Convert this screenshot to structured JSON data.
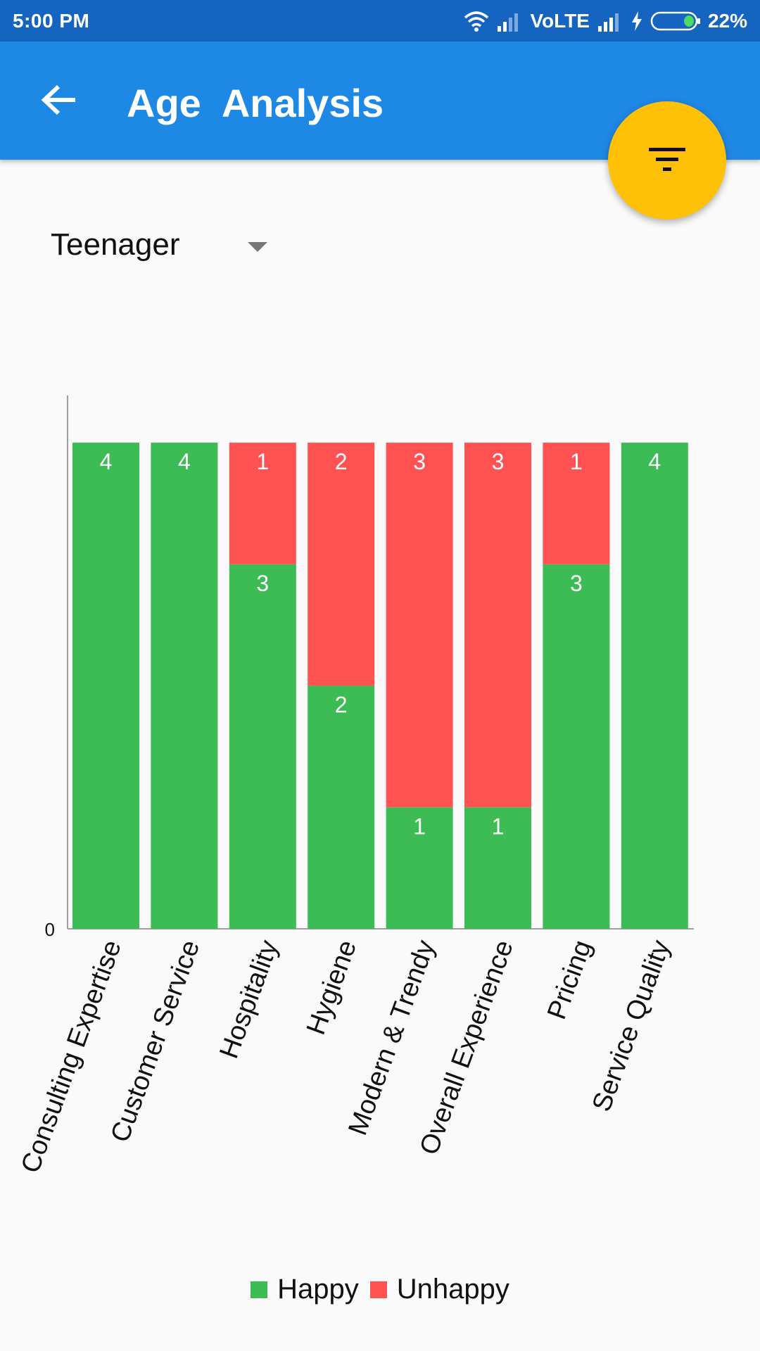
{
  "status_bar": {
    "time": "5:00 PM",
    "network": "VoLTE",
    "battery": "22%",
    "icons": [
      "wifi-icon",
      "signal-weak-icon",
      "signal-strong-icon",
      "charging-icon",
      "battery-icon"
    ]
  },
  "app_bar": {
    "title": "Age  Analysis",
    "back_icon": "arrow-left-icon",
    "color": "#1e88e5"
  },
  "fab": {
    "icon": "filter-icon",
    "color": "#ffc107"
  },
  "filter": {
    "selected": "Teenager"
  },
  "chart_data": {
    "type": "bar",
    "stacked": true,
    "categories": [
      "Consulting Expertise",
      "Customer Service",
      "Hospitality",
      "Hygiene",
      "Modern & Trendy",
      "Overall Experience",
      "Pricing",
      "Service Quality"
    ],
    "series": [
      {
        "name": "Happy",
        "values": [
          4,
          4,
          3,
          2,
          1,
          1,
          3,
          4
        ],
        "color": "#3dbb55"
      },
      {
        "name": "Unhappy",
        "values": [
          0,
          0,
          1,
          2,
          3,
          3,
          1,
          0
        ],
        "color": "#ff5252"
      }
    ],
    "y_tick_labels": [
      "0"
    ],
    "ylim": [
      0,
      4.4
    ],
    "grid": false,
    "legend_position": "bottom-center"
  }
}
